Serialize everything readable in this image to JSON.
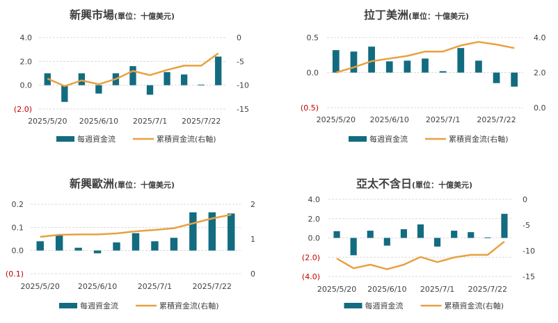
{
  "colors": {
    "bar": "#136b80",
    "line": "#e8a040",
    "grid": "#d9d9d9",
    "text": "#404040",
    "negative": "#c00000"
  },
  "legend": {
    "bar_label": "每週資金流",
    "line_label": "累積資金流(右軸)"
  },
  "chart_data": [
    {
      "type": "bar+line",
      "title": "新興市場",
      "unit": "(單位：十億美元)",
      "x_ticks": [
        "2025/5/20",
        "2025/6/10",
        "2025/7/1",
        "2025/7/22"
      ],
      "y_left": {
        "min": -2,
        "max": 4,
        "step": 2,
        "ticks": [
          "4.0",
          "2.0",
          "0.0",
          "(2.0)"
        ]
      },
      "y_right": {
        "min": -15,
        "max": 0,
        "step": 5,
        "ticks": [
          "0",
          "-5",
          "-10",
          "-15"
        ]
      },
      "weekly_flow": [
        1.0,
        -1.4,
        1.0,
        -0.7,
        1.0,
        1.6,
        -0.8,
        1.1,
        0.9,
        0.05,
        2.4
      ],
      "cumulative_flow": [
        -8.6,
        -10.2,
        -9.0,
        -9.8,
        -8.7,
        -7.0,
        -7.9,
        -6.8,
        -5.9,
        -5.9,
        -3.3
      ]
    },
    {
      "type": "bar+line",
      "title": "拉丁美洲",
      "unit": "(單位：十億美元)",
      "x_ticks": [
        "2025/5/20",
        "2025/6/10",
        "2025/7/1",
        "2025/7/22"
      ],
      "y_left": {
        "min": -0.5,
        "max": 0.5,
        "step": 0.5,
        "ticks": [
          "0.5",
          "0.0",
          "(0.5)"
        ]
      },
      "y_right": {
        "min": 0,
        "max": 4,
        "step": 2,
        "ticks": [
          "4.0",
          "2.0",
          "0.0"
        ]
      },
      "weekly_flow": [
        0.32,
        0.3,
        0.37,
        0.16,
        0.17,
        0.2,
        0.02,
        0.35,
        0.17,
        -0.15,
        -0.2
      ],
      "cumulative_flow": [
        2.0,
        2.3,
        2.65,
        2.8,
        2.95,
        3.2,
        3.2,
        3.55,
        3.75,
        3.6,
        3.4
      ]
    },
    {
      "type": "bar+line",
      "title": "新興歐洲",
      "unit": "(單位：十億美元)",
      "x_ticks": [
        "2025/5/20",
        "2025/6/10",
        "2025/7/1",
        "2025/7/22"
      ],
      "y_left": {
        "min": -0.1,
        "max": 0.2,
        "step": 0.1,
        "ticks": [
          "0.2",
          "0.1",
          "0.0",
          "(0.1)"
        ]
      },
      "y_right": {
        "min": 0,
        "max": 2,
        "step": 1,
        "ticks": [
          "2",
          "1",
          "0"
        ]
      },
      "weekly_flow": [
        0.04,
        0.065,
        0.012,
        -0.012,
        0.035,
        0.075,
        0.04,
        0.055,
        0.165,
        0.165,
        0.16
      ],
      "cumulative_flow": [
        1.06,
        1.12,
        1.13,
        1.13,
        1.16,
        1.22,
        1.26,
        1.31,
        1.45,
        1.59,
        1.7
      ]
    },
    {
      "type": "bar+line",
      "title": "亞太不含日",
      "unit": "(單位：十億美元)",
      "x_ticks": [
        "2025/5/20",
        "2025/6/10",
        "2025/7/1",
        "2025/7/22"
      ],
      "y_left": {
        "min": -4,
        "max": 4,
        "step": 2,
        "ticks": [
          "4.0",
          "2.0",
          "0.0",
          "(2.0)",
          "(4.0)"
        ]
      },
      "y_right": {
        "min": -15,
        "max": 0,
        "step": 5,
        "ticks": [
          "0",
          "-5",
          "-10",
          "-15"
        ]
      },
      "weekly_flow": [
        0.7,
        -1.8,
        0.75,
        -0.8,
        0.9,
        1.4,
        -0.9,
        0.75,
        0.6,
        0.05,
        2.5
      ],
      "cumulative_flow": [
        -11.5,
        -13.4,
        -12.7,
        -13.6,
        -12.7,
        -11.2,
        -12.2,
        -11.3,
        -10.8,
        -10.8,
        -8.2
      ]
    }
  ]
}
